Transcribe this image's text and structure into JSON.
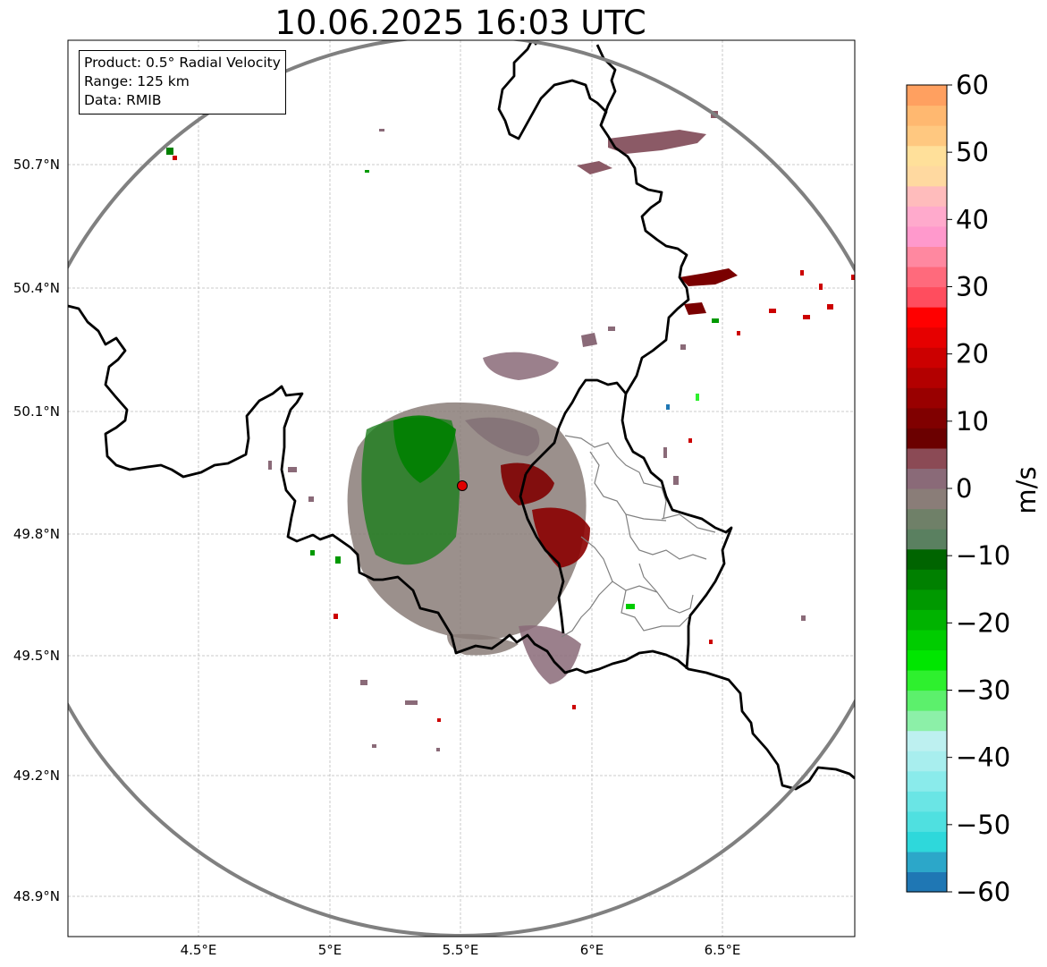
{
  "map": {
    "title": "10.06.2025 16:03 UTC",
    "info_box": {
      "product": "Product: 0.5° Radial Velocity",
      "range": "Range: 125 km",
      "source": "Data: RMIB"
    },
    "radar_site": {
      "lon": 5.5,
      "lat": 49.915
    },
    "extent": {
      "lon": [
        4.0,
        7.0
      ],
      "lat": [
        48.8,
        51.08
      ]
    },
    "lon_ticks": [
      "4.5°E",
      "5°E",
      "5.5°E",
      "6°E",
      "6.5°E"
    ],
    "lat_ticks": [
      "50.7°N",
      "50.4°N",
      "50.1°N",
      "49.8°N",
      "49.5°N",
      "49.2°N",
      "48.9°N"
    ],
    "range_ring_color": "#808080",
    "border_color": "#000000",
    "admin_border_color": "#808080"
  },
  "colorbar": {
    "label": "m/s",
    "ticks": [
      "60",
      "50",
      "40",
      "30",
      "20",
      "10",
      "0",
      "−10",
      "−20",
      "−30",
      "−40",
      "−50",
      "−60"
    ],
    "range": [
      -60,
      60
    ],
    "colors": [
      "#1f77b4",
      "#2ca7c9",
      "#2ed8db",
      "#4fe0e0",
      "#6ae5e5",
      "#8aebeb",
      "#a8eeee",
      "#bdf0f0",
      "#8cf0a8",
      "#5cf06c",
      "#2ef02e",
      "#00e600",
      "#00cc00",
      "#00b300",
      "#009900",
      "#008000",
      "#006400",
      "#5a8060",
      "#6f8068",
      "#8a7d78",
      "#8a6a78",
      "#8b4a55",
      "#6b0000",
      "#800000",
      "#990000",
      "#b30000",
      "#cc0000",
      "#e60000",
      "#ff0000",
      "#ff4d5e",
      "#ff6a7c",
      "#ff88a0",
      "#ff99cc",
      "#ffaacc",
      "#ffbcbc",
      "#ffd9a0",
      "#ffe09a",
      "#ffc880",
      "#ffb870",
      "#ffa060"
    ]
  }
}
